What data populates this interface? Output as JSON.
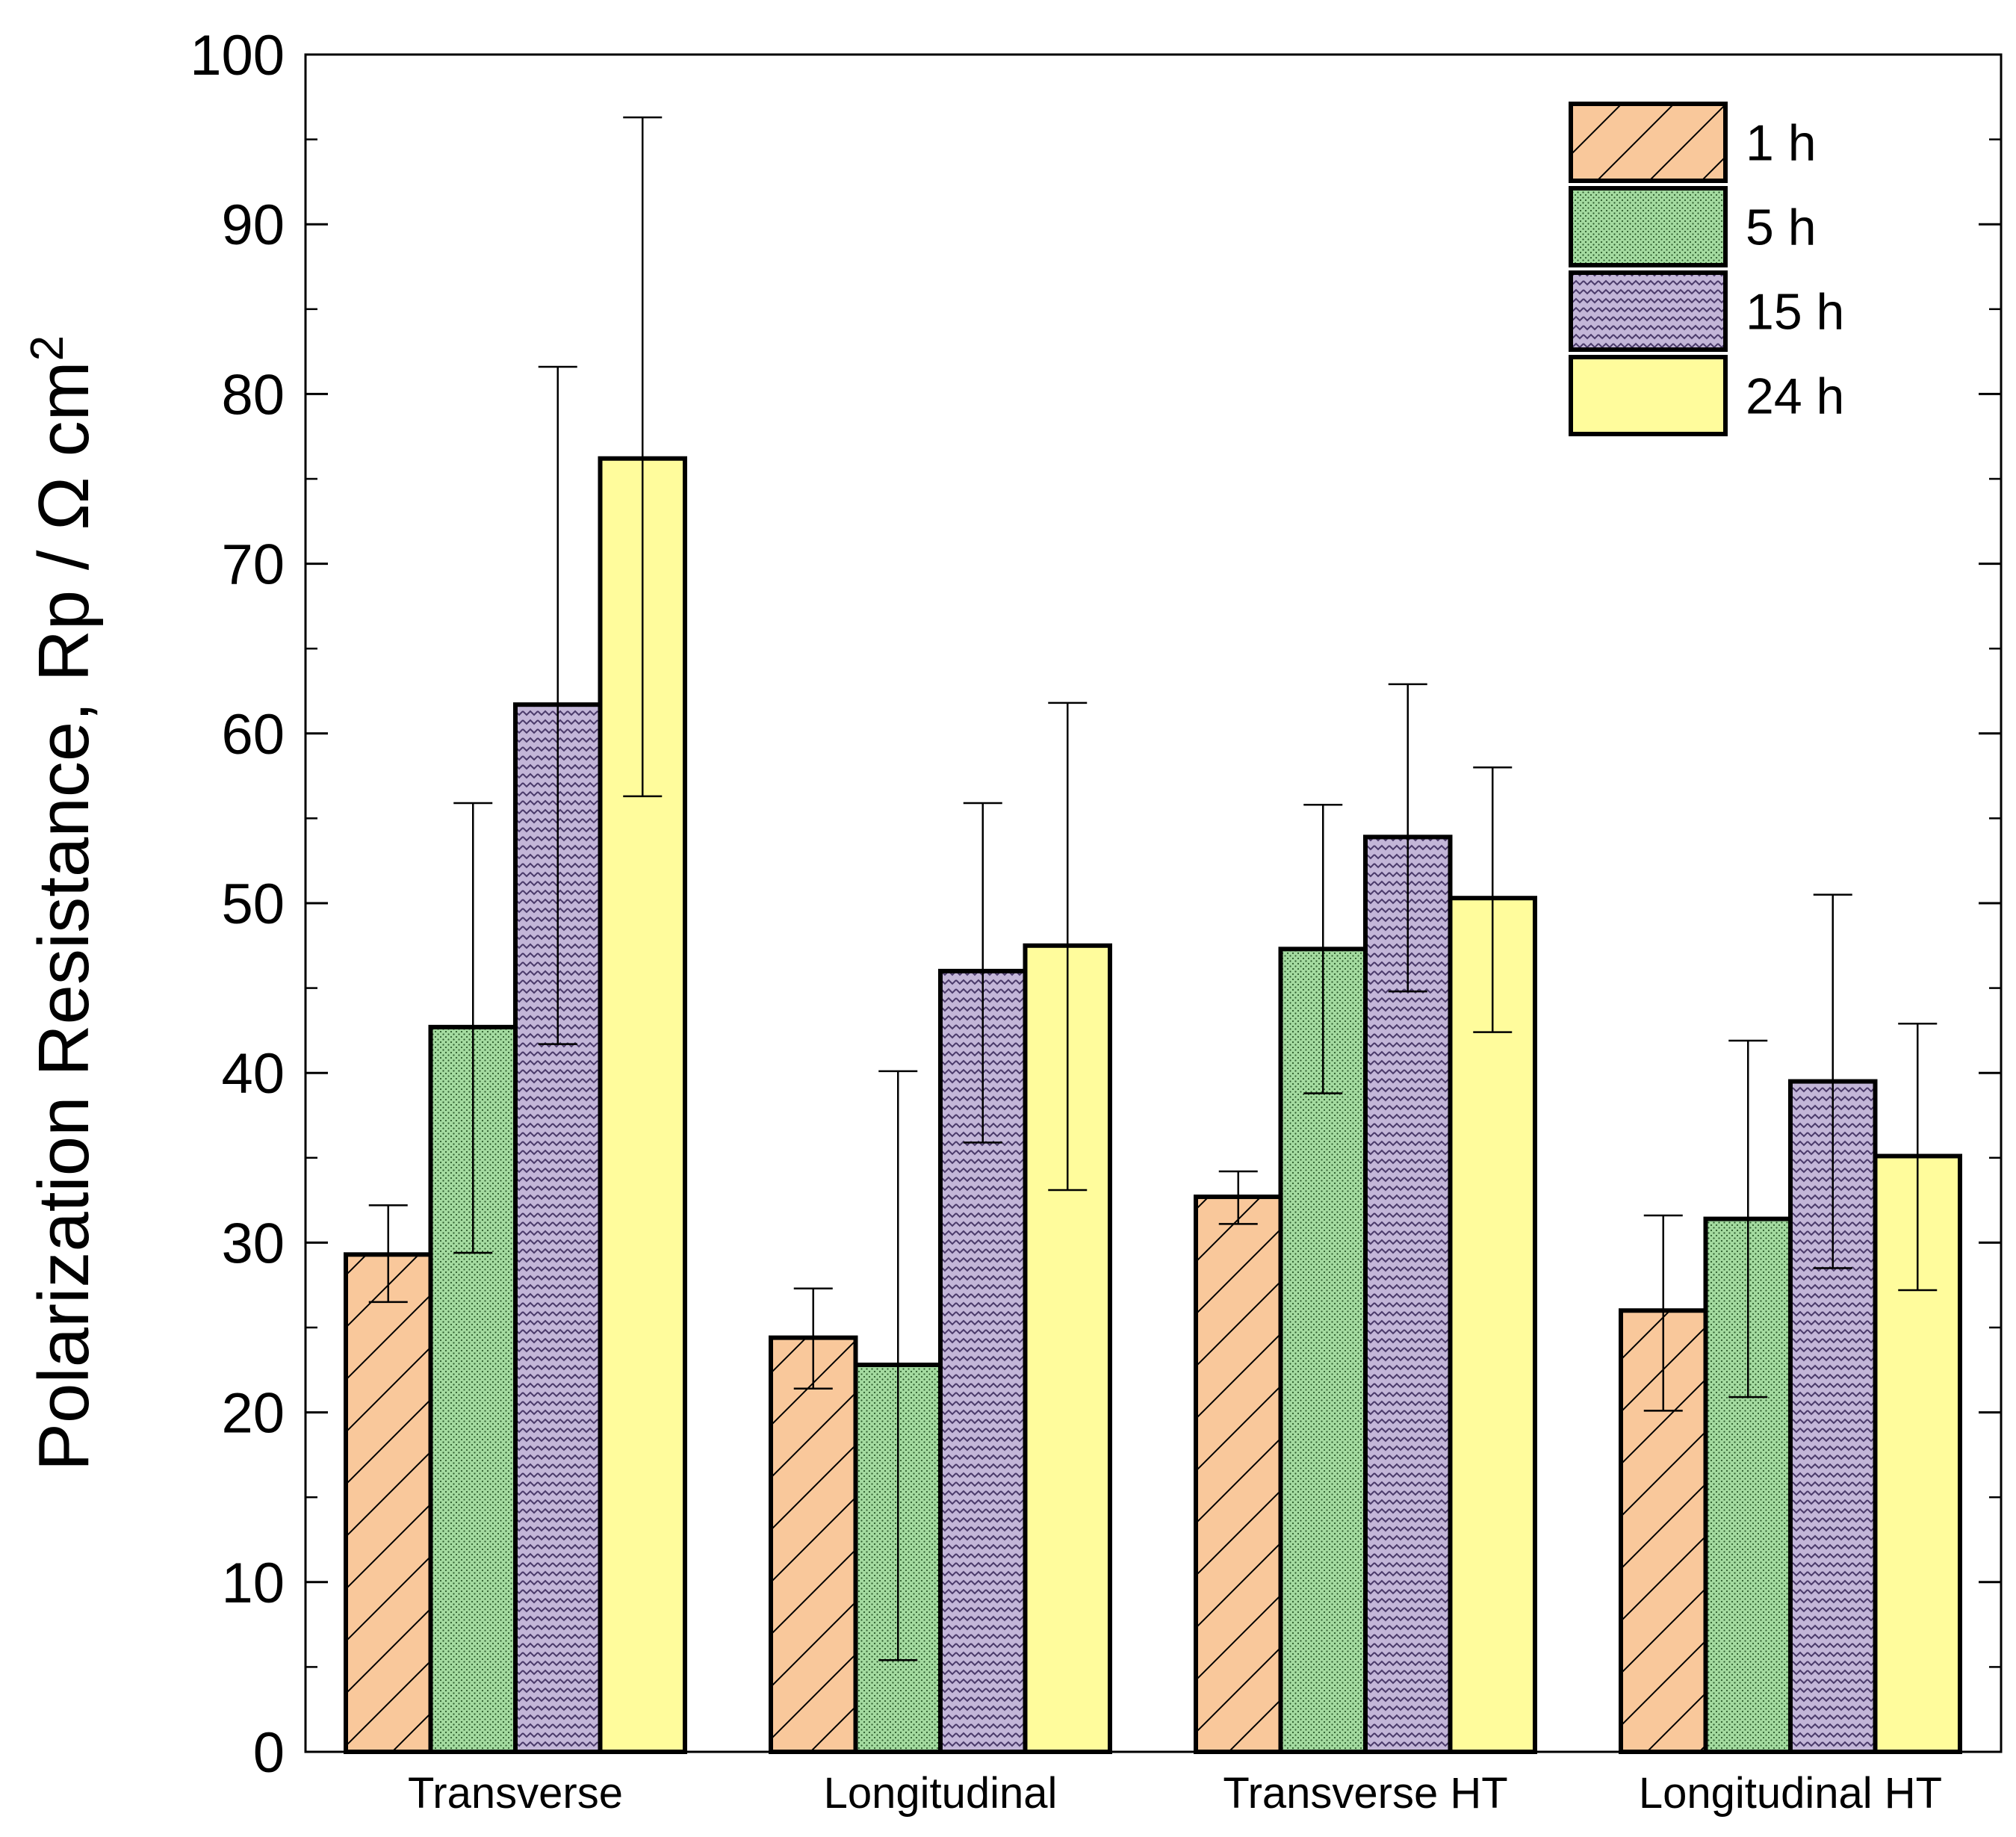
{
  "chart_data": {
    "type": "bar",
    "title": "",
    "xlabel": "",
    "ylabel": "Polarization Resistance, Rp / Ω cm",
    "ylabel_superscript": "2",
    "ylim": [
      0,
      100
    ],
    "yticks": [
      0,
      10,
      20,
      30,
      40,
      50,
      60,
      70,
      80,
      90,
      100
    ],
    "grid": false,
    "legend_position": "top-right",
    "categories": [
      "Transverse",
      "Longitudinal",
      "Transverse HT",
      "Longitudinal HT"
    ],
    "series": [
      {
        "name": "1 h",
        "color": "#f9c89b",
        "pattern": "diagonal-hatch",
        "values": [
          29.3,
          24.4,
          32.7,
          26.0
        ],
        "error_low": [
          26.5,
          21.4,
          31.1,
          20.1
        ],
        "error_high": [
          32.2,
          27.3,
          34.2,
          31.6
        ]
      },
      {
        "name": "5 h",
        "color": "#a4dba0",
        "pattern": "dots",
        "values": [
          42.7,
          22.8,
          47.3,
          31.4
        ],
        "error_low": [
          29.4,
          5.4,
          38.8,
          20.9
        ],
        "error_high": [
          55.9,
          40.1,
          55.8,
          41.9
        ]
      },
      {
        "name": "15 h",
        "color": "#b5a6cc",
        "pattern": "zigzag",
        "values": [
          61.7,
          46.0,
          53.9,
          39.5
        ],
        "error_low": [
          41.7,
          35.9,
          44.8,
          28.5
        ],
        "error_high": [
          81.6,
          55.9,
          62.9,
          50.5
        ]
      },
      {
        "name": "24 h",
        "color": "#fffc9c",
        "pattern": "solid",
        "values": [
          76.2,
          47.5,
          50.3,
          35.1
        ],
        "error_low": [
          56.3,
          33.1,
          42.4,
          27.2
        ],
        "error_high": [
          96.3,
          61.8,
          58.0,
          42.9
        ]
      }
    ]
  }
}
